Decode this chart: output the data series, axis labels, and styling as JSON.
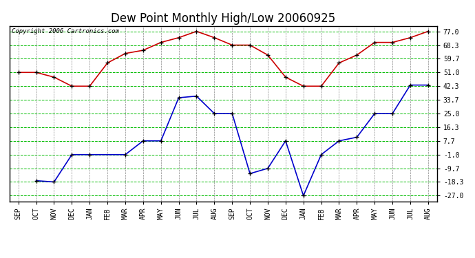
{
  "title": "Dew Point Monthly High/Low 20060925",
  "copyright": "Copyright 2006 Cartronics.com",
  "months": [
    "SEP",
    "OCT",
    "NOV",
    "DEC",
    "JAN",
    "FEB",
    "MAR",
    "APR",
    "MAY",
    "JUN",
    "JUL",
    "AUG",
    "SEP",
    "OCT",
    "NOV",
    "DEC",
    "JAN",
    "FEB",
    "MAR",
    "APR",
    "MAY",
    "JUN",
    "JUL",
    "AUG"
  ],
  "high_values": [
    51.0,
    51.0,
    48.0,
    42.3,
    42.3,
    57.0,
    63.0,
    65.0,
    70.0,
    73.0,
    77.0,
    73.0,
    68.3,
    68.3,
    62.0,
    48.0,
    42.3,
    42.3,
    57.0,
    62.0,
    70.0,
    70.0,
    73.0,
    77.0
  ],
  "low_values": [
    null,
    -17.5,
    -18.3,
    -1.0,
    -1.0,
    null,
    -1.0,
    7.7,
    7.7,
    35.0,
    36.0,
    25.0,
    25.0,
    -13.0,
    -9.7,
    7.7,
    -27.0,
    -1.0,
    7.7,
    10.0,
    25.0,
    25.0,
    43.0,
    43.0
  ],
  "high_color": "#cc0000",
  "low_color": "#0000cc",
  "marker_color": "#000000",
  "grid_h_color": "#00bb00",
  "grid_v_color": "#888888",
  "background_color": "#ffffff",
  "border_color": "#000000",
  "yticks": [
    -27.0,
    -18.3,
    -9.7,
    -1.0,
    7.7,
    16.3,
    25.0,
    33.7,
    42.3,
    51.0,
    59.7,
    68.3,
    77.0
  ],
  "ylim": [
    -30.5,
    80.5
  ],
  "title_fontsize": 12,
  "tick_fontsize": 7,
  "copyright_fontsize": 6.5,
  "linewidth": 1.2,
  "markersize": 5
}
